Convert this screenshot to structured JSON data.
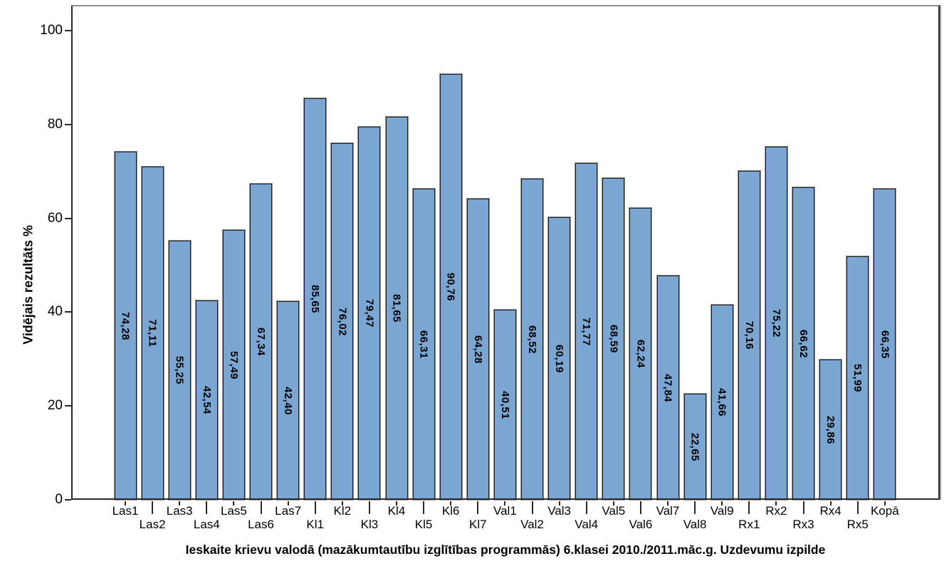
{
  "chart_data": {
    "type": "bar",
    "title": "",
    "xlabel": "Ieskaite krievu valodā (mazākumtautību izglītības programmās) 6.klasei 2010./2011.māc.g. Uzdevumu izpilde",
    "ylabel": "Vidējais rezultāts %",
    "categories": [
      "Las1",
      "Las2",
      "Las3",
      "Las4",
      "Las5",
      "Las6",
      "Las7",
      "Kl1",
      "Kl2",
      "Kl3",
      "Kl4",
      "Kl5",
      "Kl6",
      "Kl7",
      "Val1",
      "Val2",
      "Val3",
      "Val4",
      "Val5",
      "Val6",
      "Val7",
      "Val8",
      "Val9",
      "Rx1",
      "Rx2",
      "Rx3",
      "Rx4",
      "Rx5",
      "Kopā"
    ],
    "values": [
      74.28,
      71.11,
      55.25,
      42.54,
      57.49,
      67.34,
      42.4,
      85.65,
      76.02,
      79.47,
      81.65,
      66.31,
      90.76,
      64.28,
      40.51,
      68.52,
      60.19,
      71.77,
      68.59,
      62.24,
      47.84,
      22.65,
      41.66,
      70.16,
      75.22,
      66.62,
      29.86,
      51.99,
      66.35
    ],
    "value_labels": [
      "74,28",
      "71,11",
      "55,25",
      "42,54",
      "57,49",
      "67,34",
      "42,40",
      "85,65",
      "76,02",
      "79,47",
      "81,65",
      "66,31",
      "90,76",
      "64,28",
      "40,51",
      "68,52",
      "60,19",
      "71,77",
      "68,59",
      "62,24",
      "47,84",
      "22,65",
      "41,66",
      "70,16",
      "75,22",
      "66,62",
      "29,86",
      "51,99",
      "66,35"
    ],
    "yticks": [
      0,
      20,
      40,
      60,
      80,
      100
    ],
    "ylim": [
      0,
      105.5
    ],
    "grid": false,
    "legend": false,
    "bar_color": "#7CA6D2",
    "bar_border_color": "#1F1F1F",
    "axis_color": "#2A2A2A",
    "frame_top_color": "#8F8F8F"
  }
}
